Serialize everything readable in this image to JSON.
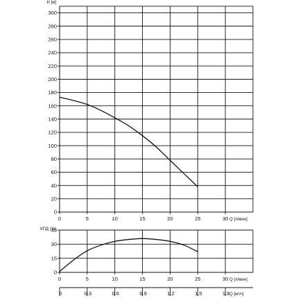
{
  "chart_data": [
    {
      "type": "line",
      "name": "head-curve",
      "xlabel": "Q [л/мин]",
      "ylabel": "H [м]",
      "x_ticks": [
        0,
        5,
        10,
        15,
        20,
        25,
        30
      ],
      "y_ticks": [
        0,
        20,
        40,
        60,
        80,
        100,
        120,
        140,
        160,
        180,
        200,
        220,
        240,
        260,
        280,
        300
      ],
      "xlim": [
        0,
        35
      ],
      "ylim": [
        0,
        310
      ],
      "grid": true,
      "series": [
        {
          "x": [
            0,
            2.5,
            5,
            7.5,
            10,
            12.5,
            15,
            17.5,
            20,
            22.5,
            25
          ],
          "y": [
            173,
            168,
            162,
            153,
            142,
            130,
            115,
            98,
            78,
            58,
            38
          ]
        }
      ]
    },
    {
      "type": "line",
      "name": "efficiency-curve",
      "xlabel": "Q [л/мин]",
      "ylabel": "КПД (%)",
      "x_ticks": [
        0,
        5,
        10,
        15,
        20,
        25,
        30
      ],
      "y_ticks": [
        0,
        15,
        30,
        45
      ],
      "xlim": [
        0,
        35
      ],
      "ylim": [
        0,
        45
      ],
      "grid": true,
      "series": [
        {
          "x": [
            0,
            2.5,
            5,
            7.5,
            10,
            12.5,
            15,
            17.5,
            20,
            22.5,
            25
          ],
          "y": [
            1,
            13,
            23,
            29,
            33,
            35,
            36,
            35,
            33,
            29,
            22
          ]
        }
      ]
    },
    {
      "type": "axis",
      "name": "m3h-scale",
      "xlabel": "Q [м³/ч]",
      "x_ticks": [
        "0",
        "0.3",
        "0.6",
        "0.9",
        "1.2",
        "1.5",
        "1.8"
      ]
    }
  ]
}
